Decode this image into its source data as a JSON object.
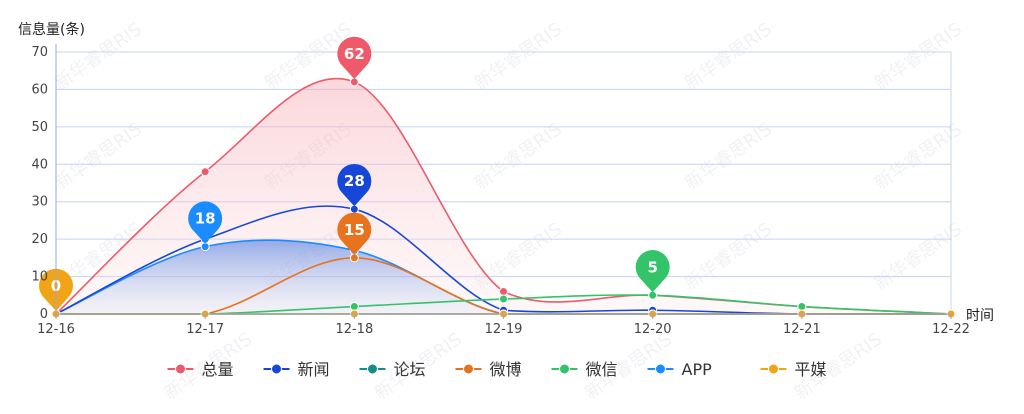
{
  "chart_data": {
    "type": "line",
    "ylabel": "信息量(条)",
    "xlabel": "时间",
    "categories": [
      "12-16",
      "12-17",
      "12-18",
      "12-19",
      "12-20",
      "12-21",
      "12-22"
    ],
    "ylim": [
      0,
      70
    ],
    "yticks": [
      0,
      10,
      20,
      30,
      40,
      50,
      60,
      70
    ],
    "grid": true,
    "legend_position": "bottom",
    "series": [
      {
        "name": "总量",
        "color": "#ee5a6a",
        "values": [
          0,
          38,
          62,
          6,
          5,
          2,
          0
        ],
        "area": true
      },
      {
        "name": "新闻",
        "color": "#1747d8",
        "values": [
          0,
          20,
          28,
          1,
          1,
          0,
          0
        ],
        "area": false
      },
      {
        "name": "论坛",
        "color": "#178a8a",
        "values": [
          0,
          0,
          0,
          0,
          0,
          0,
          0
        ],
        "area": false
      },
      {
        "name": "微博",
        "color": "#e8731f",
        "values": [
          0,
          0,
          15,
          0,
          0,
          0,
          0
        ],
        "area": false
      },
      {
        "name": "微信",
        "color": "#33c46a",
        "values": [
          0,
          0,
          2,
          4,
          5,
          2,
          0
        ],
        "area": false
      },
      {
        "name": "APP",
        "color": "#1a8cff",
        "values": [
          0,
          18,
          17,
          0,
          0,
          0,
          0
        ],
        "area": true
      },
      {
        "name": "平媒",
        "color": "#f1a415",
        "values": [
          0,
          0,
          0,
          0,
          0,
          0,
          0
        ],
        "area": false
      }
    ],
    "annotations": [
      {
        "series": "总量",
        "category": "12-18",
        "value": 62,
        "label": "62"
      },
      {
        "series": "新闻",
        "category": "12-18",
        "value": 28,
        "label": "28"
      },
      {
        "series": "微博",
        "category": "12-18",
        "value": 15,
        "label": "15"
      },
      {
        "series": "APP",
        "category": "12-17",
        "value": 18,
        "label": "18"
      },
      {
        "series": "微信",
        "category": "12-20",
        "value": 5,
        "label": "5"
      },
      {
        "series": "平媒",
        "category": "12-16",
        "value": 0,
        "label": "0"
      }
    ]
  },
  "watermark_text": "新华睿思RIS"
}
